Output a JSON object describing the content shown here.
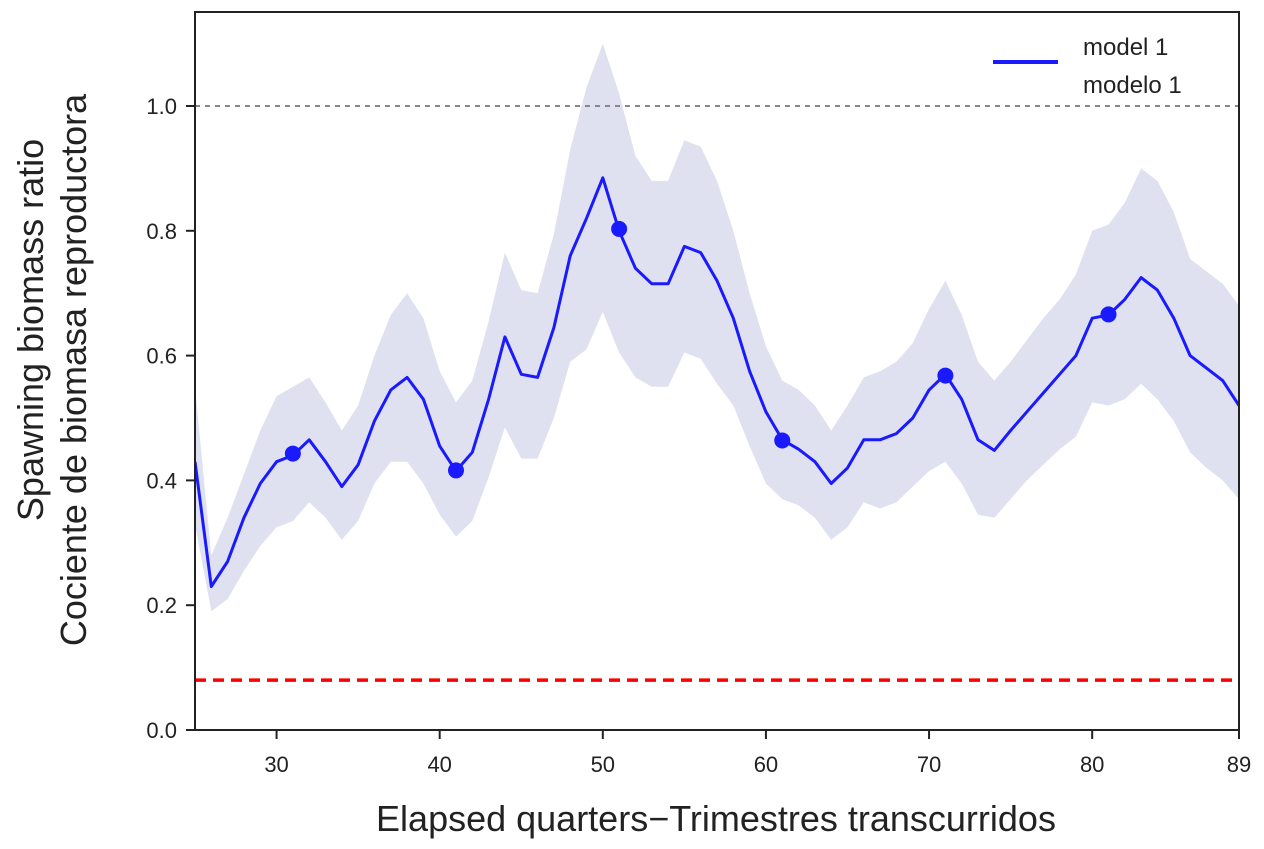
{
  "chart_data": {
    "type": "line",
    "xlabel": "Elapsed quarters−Trimestres transcurridos",
    "ylabel": [
      "Spawning biomass ratio",
      "Cociente de biomasa reproductora"
    ],
    "xlim": [
      25,
      89
    ],
    "ylim": [
      0.0,
      1.0
    ],
    "x_ticks": [
      30,
      40,
      50,
      60,
      70,
      80,
      89
    ],
    "x_tick_labels": [
      "30",
      "40",
      "50",
      "60",
      "70",
      "80",
      "89"
    ],
    "y_ticks": [
      0.0,
      0.2,
      0.4,
      0.6,
      0.8,
      1.0
    ],
    "y_tick_labels": [
      "0.0",
      "0.2",
      "0.4",
      "0.6",
      "0.8",
      "1.0"
    ],
    "grid": false,
    "legend": {
      "position": "top-right",
      "entries": [
        "model 1",
        "modelo 1"
      ]
    },
    "colors": {
      "line": "#1a1aff",
      "band": "#dfe1f0",
      "reference_line": "#888888",
      "limit_line": "#ff0000"
    },
    "reference_lines": [
      {
        "y": 1.0,
        "style": "dotted",
        "color": "#888888"
      },
      {
        "y": 0.08,
        "style": "dashed",
        "color": "#ff0000"
      }
    ],
    "series": [
      {
        "name": "model 1",
        "x": [
          25,
          26,
          27,
          28,
          29,
          30,
          31,
          32,
          33,
          34,
          35,
          36,
          37,
          38,
          39,
          40,
          41,
          42,
          43,
          44,
          45,
          46,
          47,
          48,
          49,
          50,
          51,
          52,
          53,
          54,
          55,
          56,
          57,
          58,
          59,
          60,
          61,
          62,
          63,
          64,
          65,
          66,
          67,
          68,
          69,
          70,
          71,
          72,
          73,
          74,
          75,
          76,
          77,
          78,
          79,
          80,
          81,
          82,
          83,
          84,
          85,
          86,
          87,
          88,
          89
        ],
        "y": [
          0.43,
          0.23,
          0.27,
          0.34,
          0.395,
          0.43,
          0.44,
          0.465,
          0.43,
          0.39,
          0.425,
          0.495,
          0.545,
          0.565,
          0.53,
          0.455,
          0.415,
          0.445,
          0.53,
          0.63,
          0.57,
          0.565,
          0.645,
          0.76,
          0.82,
          0.885,
          0.8,
          0.74,
          0.715,
          0.715,
          0.775,
          0.765,
          0.72,
          0.66,
          0.575,
          0.51,
          0.465,
          0.45,
          0.43,
          0.395,
          0.42,
          0.465,
          0.465,
          0.475,
          0.5,
          0.545,
          0.57,
          0.53,
          0.465,
          0.448,
          0.48,
          0.51,
          0.54,
          0.57,
          0.6,
          0.66,
          0.665,
          0.69,
          0.725,
          0.705,
          0.66,
          0.6,
          0.58,
          0.56,
          0.52
        ],
        "upper": [
          0.55,
          0.28,
          0.34,
          0.41,
          0.48,
          0.535,
          0.55,
          0.565,
          0.525,
          0.48,
          0.52,
          0.6,
          0.665,
          0.7,
          0.66,
          0.575,
          0.525,
          0.56,
          0.655,
          0.765,
          0.705,
          0.7,
          0.795,
          0.93,
          1.03,
          1.1,
          1.02,
          0.92,
          0.88,
          0.88,
          0.945,
          0.935,
          0.88,
          0.8,
          0.7,
          0.615,
          0.56,
          0.545,
          0.52,
          0.48,
          0.52,
          0.565,
          0.575,
          0.59,
          0.62,
          0.675,
          0.72,
          0.665,
          0.59,
          0.56,
          0.59,
          0.625,
          0.66,
          0.69,
          0.73,
          0.8,
          0.81,
          0.845,
          0.9,
          0.88,
          0.83,
          0.755,
          0.735,
          0.715,
          0.68
        ],
        "lower": [
          0.33,
          0.19,
          0.21,
          0.255,
          0.295,
          0.325,
          0.335,
          0.365,
          0.34,
          0.305,
          0.335,
          0.395,
          0.43,
          0.43,
          0.395,
          0.345,
          0.31,
          0.335,
          0.405,
          0.485,
          0.435,
          0.435,
          0.5,
          0.59,
          0.61,
          0.67,
          0.605,
          0.565,
          0.55,
          0.55,
          0.605,
          0.595,
          0.555,
          0.52,
          0.455,
          0.395,
          0.37,
          0.36,
          0.34,
          0.305,
          0.325,
          0.365,
          0.355,
          0.365,
          0.39,
          0.415,
          0.43,
          0.395,
          0.345,
          0.34,
          0.37,
          0.4,
          0.425,
          0.45,
          0.47,
          0.525,
          0.52,
          0.53,
          0.555,
          0.53,
          0.495,
          0.445,
          0.42,
          0.4,
          0.37
        ]
      }
    ],
    "highlighted_points": [
      {
        "x": 31,
        "y": 0.443
      },
      {
        "x": 41,
        "y": 0.416
      },
      {
        "x": 51,
        "y": 0.803
      },
      {
        "x": 61,
        "y": 0.464
      },
      {
        "x": 71,
        "y": 0.568
      },
      {
        "x": 81,
        "y": 0.666
      }
    ]
  }
}
